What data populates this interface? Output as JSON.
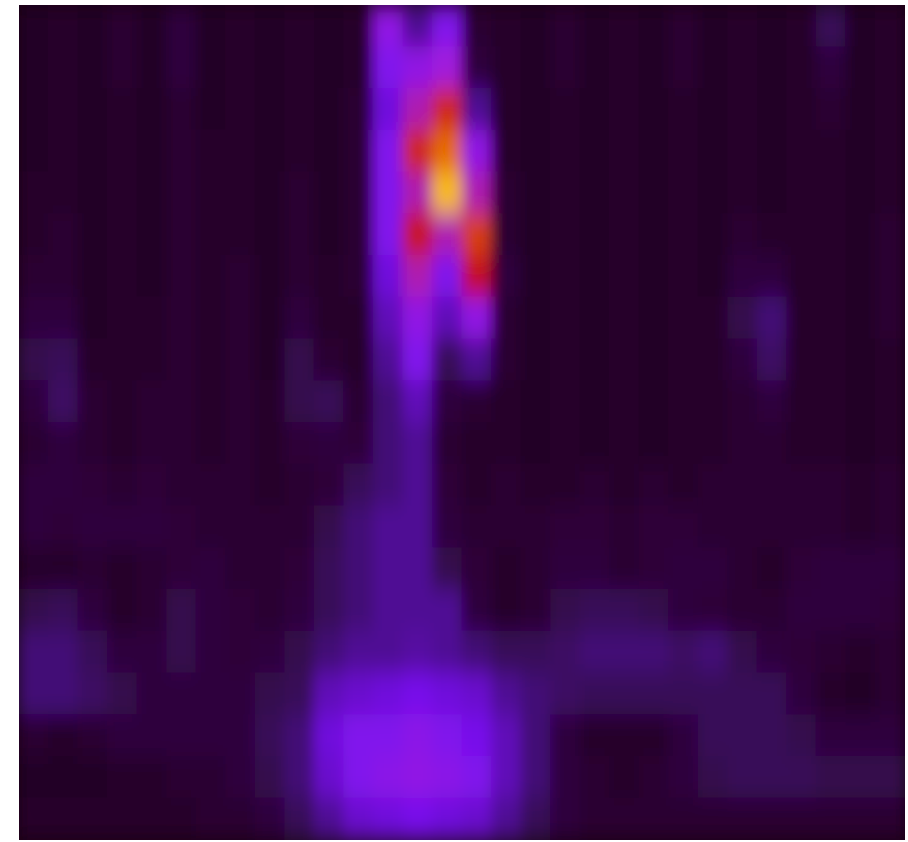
{
  "chart_data": {
    "type": "heatmap",
    "colormap": [
      "#18000f",
      "#2e0638",
      "#4a0a8a",
      "#7a10f0",
      "#a81cd8",
      "#c81010",
      "#e87000",
      "#ffe030"
    ],
    "values": [
      [
        0.08,
        0.1,
        0.08,
        0.12,
        0.08,
        0.15,
        0.08,
        0.1,
        0.08,
        0.1,
        0.08,
        0.1,
        0.5,
        0.3,
        0.45,
        0.12,
        0.1,
        0.08,
        0.12,
        0.08,
        0.1,
        0.08,
        0.12,
        0.08,
        0.1,
        0.08,
        0.1,
        0.2,
        0.08,
        0.1
      ],
      [
        0.08,
        0.1,
        0.08,
        0.12,
        0.08,
        0.15,
        0.08,
        0.1,
        0.08,
        0.1,
        0.08,
        0.1,
        0.45,
        0.5,
        0.55,
        0.15,
        0.1,
        0.08,
        0.12,
        0.08,
        0.1,
        0.08,
        0.12,
        0.08,
        0.1,
        0.08,
        0.1,
        0.15,
        0.08,
        0.1
      ],
      [
        0.08,
        0.1,
        0.08,
        0.1,
        0.08,
        0.12,
        0.08,
        0.1,
        0.08,
        0.1,
        0.08,
        0.12,
        0.4,
        0.6,
        0.75,
        0.3,
        0.1,
        0.08,
        0.1,
        0.08,
        0.1,
        0.08,
        0.1,
        0.08,
        0.1,
        0.08,
        0.1,
        0.12,
        0.08,
        0.1
      ],
      [
        0.08,
        0.1,
        0.08,
        0.1,
        0.08,
        0.12,
        0.1,
        0.1,
        0.08,
        0.1,
        0.08,
        0.12,
        0.45,
        0.75,
        0.85,
        0.5,
        0.1,
        0.08,
        0.1,
        0.08,
        0.1,
        0.08,
        0.1,
        0.08,
        0.1,
        0.08,
        0.1,
        0.1,
        0.08,
        0.1
      ],
      [
        0.1,
        0.1,
        0.08,
        0.1,
        0.08,
        0.12,
        0.1,
        0.1,
        0.08,
        0.12,
        0.08,
        0.12,
        0.45,
        0.6,
        0.95,
        0.6,
        0.12,
        0.08,
        0.1,
        0.08,
        0.1,
        0.08,
        0.1,
        0.08,
        0.1,
        0.08,
        0.1,
        0.1,
        0.08,
        0.1
      ],
      [
        0.1,
        0.12,
        0.08,
        0.1,
        0.08,
        0.12,
        0.1,
        0.1,
        0.08,
        0.12,
        0.08,
        0.12,
        0.45,
        0.72,
        0.6,
        0.78,
        0.12,
        0.08,
        0.1,
        0.08,
        0.1,
        0.08,
        0.1,
        0.08,
        0.12,
        0.1,
        0.1,
        0.1,
        0.08,
        0.12
      ],
      [
        0.12,
        0.12,
        0.08,
        0.1,
        0.08,
        0.12,
        0.1,
        0.12,
        0.08,
        0.12,
        0.1,
        0.12,
        0.4,
        0.6,
        0.45,
        0.7,
        0.15,
        0.08,
        0.1,
        0.08,
        0.1,
        0.08,
        0.1,
        0.08,
        0.15,
        0.15,
        0.1,
        0.1,
        0.08,
        0.12
      ],
      [
        0.15,
        0.15,
        0.08,
        0.1,
        0.1,
        0.12,
        0.1,
        0.12,
        0.08,
        0.15,
        0.1,
        0.1,
        0.35,
        0.5,
        0.35,
        0.5,
        0.12,
        0.08,
        0.1,
        0.08,
        0.1,
        0.08,
        0.1,
        0.1,
        0.18,
        0.25,
        0.1,
        0.1,
        0.08,
        0.12
      ],
      [
        0.18,
        0.2,
        0.1,
        0.1,
        0.1,
        0.12,
        0.1,
        0.12,
        0.08,
        0.18,
        0.12,
        0.1,
        0.3,
        0.45,
        0.2,
        0.3,
        0.12,
        0.08,
        0.1,
        0.08,
        0.1,
        0.08,
        0.1,
        0.1,
        0.15,
        0.22,
        0.1,
        0.1,
        0.08,
        0.1
      ],
      [
        0.15,
        0.22,
        0.12,
        0.1,
        0.12,
        0.12,
        0.1,
        0.12,
        0.1,
        0.18,
        0.2,
        0.12,
        0.25,
        0.35,
        0.15,
        0.12,
        0.1,
        0.08,
        0.1,
        0.08,
        0.1,
        0.08,
        0.1,
        0.1,
        0.12,
        0.15,
        0.1,
        0.1,
        0.08,
        0.1
      ],
      [
        0.12,
        0.15,
        0.12,
        0.1,
        0.12,
        0.12,
        0.1,
        0.12,
        0.1,
        0.14,
        0.15,
        0.14,
        0.25,
        0.3,
        0.12,
        0.1,
        0.1,
        0.08,
        0.1,
        0.08,
        0.1,
        0.08,
        0.1,
        0.1,
        0.12,
        0.12,
        0.1,
        0.1,
        0.08,
        0.1
      ],
      [
        0.15,
        0.15,
        0.14,
        0.12,
        0.14,
        0.12,
        0.12,
        0.12,
        0.1,
        0.12,
        0.14,
        0.2,
        0.25,
        0.3,
        0.14,
        0.1,
        0.12,
        0.1,
        0.1,
        0.12,
        0.1,
        0.12,
        0.1,
        0.12,
        0.12,
        0.12,
        0.12,
        0.12,
        0.1,
        0.12
      ],
      [
        0.15,
        0.14,
        0.15,
        0.15,
        0.15,
        0.14,
        0.12,
        0.12,
        0.12,
        0.12,
        0.18,
        0.25,
        0.3,
        0.3,
        0.15,
        0.12,
        0.12,
        0.12,
        0.14,
        0.14,
        0.12,
        0.14,
        0.14,
        0.12,
        0.12,
        0.12,
        0.12,
        0.12,
        0.1,
        0.12
      ],
      [
        0.1,
        0.1,
        0.12,
        0.1,
        0.12,
        0.14,
        0.15,
        0.12,
        0.12,
        0.14,
        0.2,
        0.25,
        0.3,
        0.3,
        0.18,
        0.14,
        0.1,
        0.12,
        0.15,
        0.15,
        0.12,
        0.14,
        0.15,
        0.15,
        0.12,
        0.1,
        0.14,
        0.15,
        0.15,
        0.15
      ],
      [
        0.18,
        0.2,
        0.15,
        0.1,
        0.12,
        0.18,
        0.15,
        0.14,
        0.12,
        0.15,
        0.2,
        0.25,
        0.3,
        0.3,
        0.3,
        0.15,
        0.1,
        0.12,
        0.18,
        0.2,
        0.2,
        0.18,
        0.15,
        0.14,
        0.12,
        0.12,
        0.15,
        0.15,
        0.15,
        0.14
      ],
      [
        0.25,
        0.25,
        0.2,
        0.15,
        0.15,
        0.18,
        0.15,
        0.14,
        0.15,
        0.18,
        0.25,
        0.3,
        0.3,
        0.32,
        0.3,
        0.25,
        0.2,
        0.2,
        0.22,
        0.25,
        0.25,
        0.25,
        0.22,
        0.25,
        0.18,
        0.15,
        0.14,
        0.12,
        0.1,
        0.12
      ],
      [
        0.25,
        0.25,
        0.22,
        0.18,
        0.15,
        0.15,
        0.15,
        0.15,
        0.18,
        0.2,
        0.35,
        0.38,
        0.4,
        0.42,
        0.4,
        0.38,
        0.3,
        0.25,
        0.22,
        0.2,
        0.2,
        0.2,
        0.2,
        0.2,
        0.2,
        0.2,
        0.15,
        0.1,
        0.08,
        0.12
      ],
      [
        0.12,
        0.1,
        0.12,
        0.15,
        0.15,
        0.15,
        0.15,
        0.15,
        0.2,
        0.25,
        0.4,
        0.45,
        0.45,
        0.48,
        0.45,
        0.42,
        0.35,
        0.25,
        0.15,
        0.1,
        0.1,
        0.1,
        0.15,
        0.2,
        0.2,
        0.2,
        0.18,
        0.15,
        0.15,
        0.15
      ],
      [
        0.08,
        0.08,
        0.08,
        0.1,
        0.1,
        0.12,
        0.12,
        0.15,
        0.18,
        0.25,
        0.38,
        0.45,
        0.48,
        0.5,
        0.48,
        0.45,
        0.35,
        0.25,
        0.15,
        0.12,
        0.1,
        0.12,
        0.15,
        0.18,
        0.2,
        0.2,
        0.2,
        0.18,
        0.18,
        0.18
      ],
      [
        0.1,
        0.1,
        0.1,
        0.1,
        0.1,
        0.1,
        0.12,
        0.12,
        0.15,
        0.2,
        0.3,
        0.38,
        0.4,
        0.42,
        0.4,
        0.38,
        0.3,
        0.2,
        0.15,
        0.12,
        0.12,
        0.12,
        0.12,
        0.12,
        0.12,
        0.12,
        0.12,
        0.12,
        0.12,
        0.12
      ]
    ]
  }
}
